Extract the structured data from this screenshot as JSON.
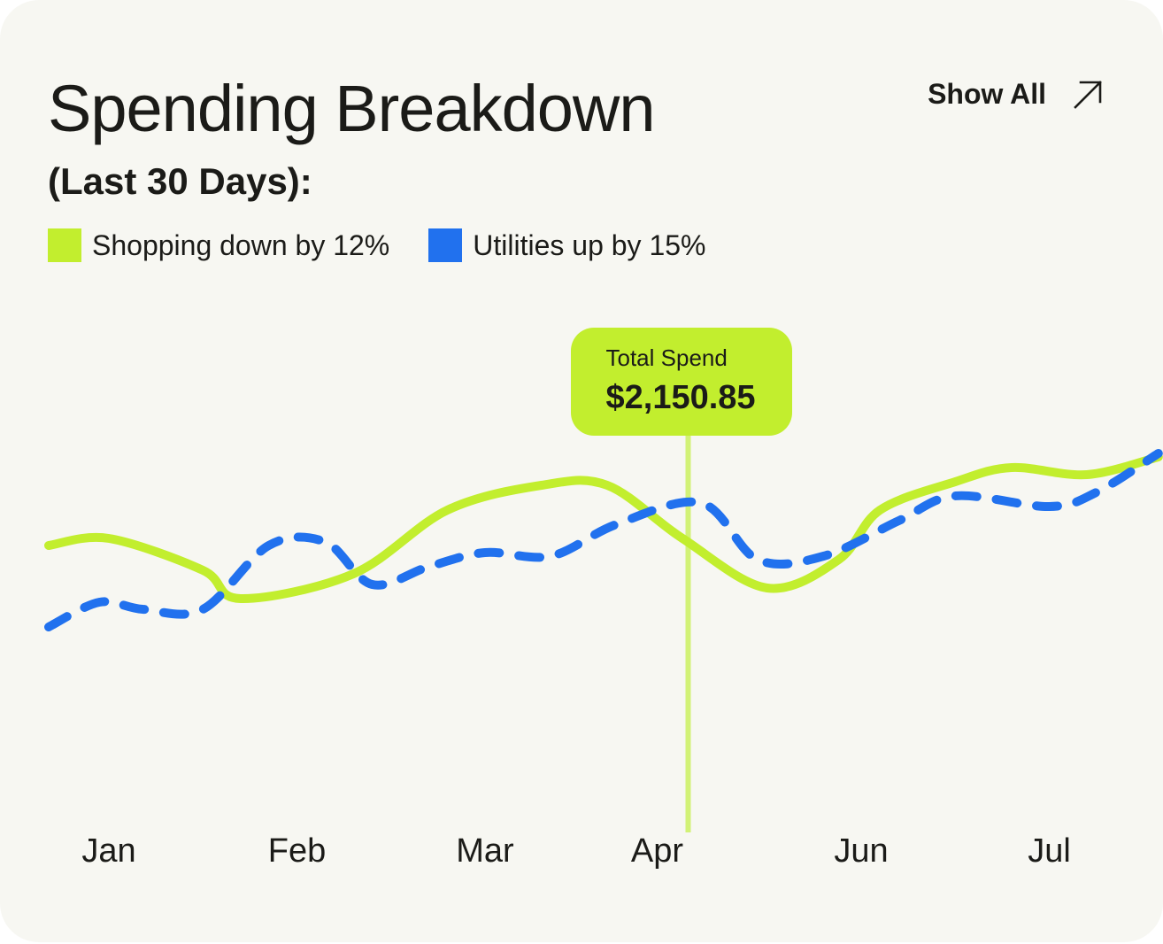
{
  "header": {
    "title": "Spending Breakdown",
    "subtitle": "(Last 30 Days):",
    "show_all_label": "Show All",
    "show_all_icon": "arrow-up-right-icon"
  },
  "colors": {
    "card_background": "#f7f7f2",
    "shopping": "#c2ee2e",
    "utilities": "#2171ee",
    "marker_line": "#d2f277",
    "text": "#1b1b18"
  },
  "tooltip": {
    "label": "Total Spend",
    "value": "$2,150.85"
  },
  "chart_data": {
    "type": "line",
    "x_label": "",
    "y_label": "",
    "y_axis_visible": false,
    "grid": false,
    "legend_placement": "top-left",
    "categories": [
      "Jan",
      "Feb",
      "Mar",
      "Apr",
      "Jun",
      "Jul"
    ],
    "x_range": [
      -0.32,
      5.58
    ],
    "y_range": [
      0,
      100
    ],
    "series": [
      {
        "name": "Shopping down by 12%",
        "style": "solid",
        "points": [
          [
            -0.32,
            55
          ],
          [
            0.0,
            57
          ],
          [
            0.5,
            48
          ],
          [
            0.7,
            40
          ],
          [
            1.3,
            47
          ],
          [
            1.8,
            65
          ],
          [
            2.3,
            72
          ],
          [
            2.65,
            72
          ],
          [
            3.05,
            57
          ],
          [
            3.5,
            43
          ],
          [
            3.88,
            51
          ],
          [
            4.1,
            65
          ],
          [
            4.5,
            73
          ],
          [
            4.8,
            77
          ],
          [
            5.2,
            75
          ],
          [
            5.58,
            80
          ]
        ]
      },
      {
        "name": "Utilities up by 15%",
        "style": "dashed",
        "points": [
          [
            -0.32,
            32
          ],
          [
            -0.05,
            39
          ],
          [
            0.18,
            37
          ],
          [
            0.5,
            37
          ],
          [
            0.85,
            55
          ],
          [
            1.15,
            56
          ],
          [
            1.4,
            44
          ],
          [
            1.7,
            49
          ],
          [
            2.0,
            53
          ],
          [
            2.35,
            52
          ],
          [
            2.7,
            61
          ],
          [
            3.15,
            67
          ],
          [
            3.45,
            51
          ],
          [
            3.8,
            52
          ],
          [
            4.2,
            62
          ],
          [
            4.5,
            69
          ],
          [
            5.0,
            66
          ],
          [
            5.25,
            70
          ],
          [
            5.58,
            81
          ]
        ]
      }
    ],
    "highlight": {
      "x": 3.08,
      "label": "Total Spend",
      "value": "$2,150.85"
    }
  }
}
